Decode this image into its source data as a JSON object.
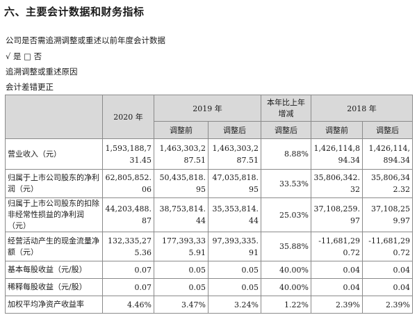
{
  "section_title": "六、主要会计数据和财务指标",
  "lines": {
    "q1": "公司是否需追溯调整或重述以前年度会计数据",
    "q1_answer": "√ 是 □ 否",
    "reason_label": "追溯调整或重述原因",
    "reason": "会计差错更正"
  },
  "table": {
    "header": {
      "y2020": "2020 年",
      "y2019": "2019 年",
      "change": "本年比上年增减",
      "y2018": "2018 年",
      "before": "调整前",
      "after": "调整后"
    },
    "rows": [
      {
        "label": "营业收入（元）",
        "v2020": "1,593,188,731.45",
        "b2019": "1,463,303,287.51",
        "a2019": "1,463,303,287.51",
        "chg": "8.88%",
        "b2018": "1,426,114,894.34",
        "a2018": "1,426,114,894.34"
      },
      {
        "label": "归属于上市公司股东的净利润（元）",
        "v2020": "62,805,852.06",
        "b2019": "50,435,818.95",
        "a2019": "47,035,818.95",
        "chg": "33.53%",
        "b2018": "35,806,342.32",
        "a2018": "35,806,342.32"
      },
      {
        "label": "归属于上市公司股东的扣除非经常性损益的净利润（元）",
        "v2020": "44,203,488.87",
        "b2019": "38,753,814.44",
        "a2019": "35,353,814.44",
        "chg": "25.03%",
        "b2018": "37,108,259.97",
        "a2018": "37,108,259.97"
      },
      {
        "label": "经营活动产生的现金流量净额（元）",
        "v2020": "132,335,275.36",
        "b2019": "177,393,335.91",
        "a2019": "97,393,335.91",
        "chg": "35.88%",
        "b2018": "-11,681,290.72",
        "a2018": "-11,681,290.72"
      },
      {
        "label": "基本每股收益（元/股）",
        "v2020": "0.07",
        "b2019": "0.05",
        "a2019": "0.05",
        "chg": "40.00%",
        "b2018": "0.04",
        "a2018": "0.04"
      },
      {
        "label": "稀释每股收益（元/股）",
        "v2020": "0.07",
        "b2019": "0.05",
        "a2019": "0.05",
        "chg": "40.00%",
        "b2018": "0.04",
        "a2018": "0.04"
      },
      {
        "label": "加权平均净资产收益率",
        "v2020": "4.46%",
        "b2019": "3.47%",
        "a2019": "3.24%",
        "chg": "1.22%",
        "b2018": "2.39%",
        "a2018": "2.39%"
      }
    ]
  }
}
